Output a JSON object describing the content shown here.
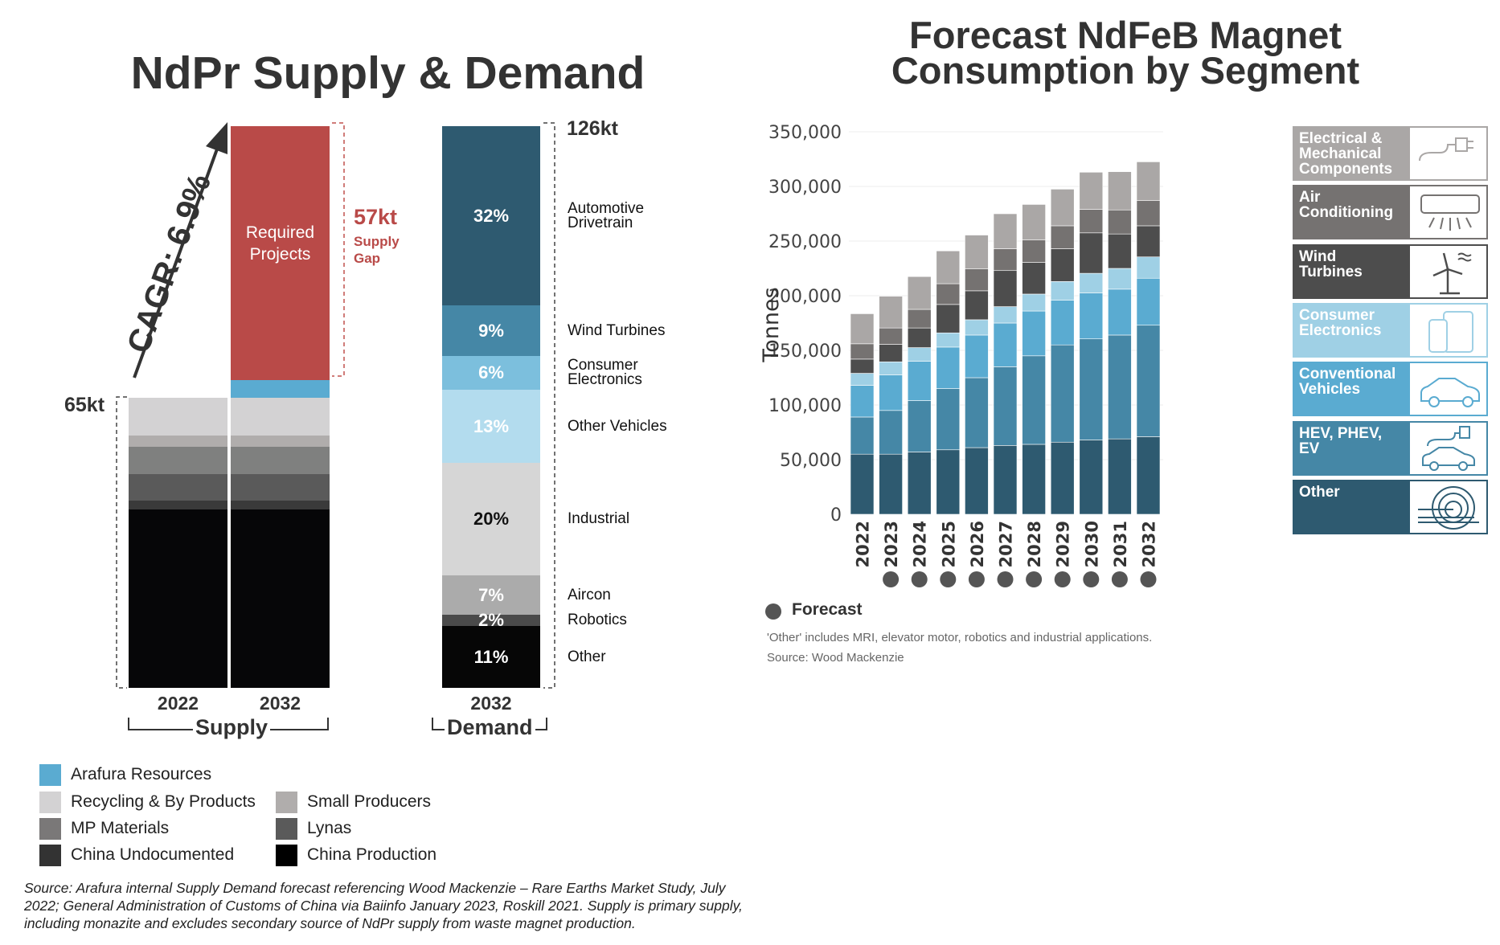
{
  "left_title": "NdPr Supply & Demand",
  "right_title_lines": [
    "Forecast NdFeB Magnet",
    "Consumption by Segment"
  ],
  "chart_data": [
    {
      "type": "bar",
      "stacked": true,
      "title": "NdPr Supply & Demand",
      "units": "kt",
      "supply": {
        "group_label": "Supply",
        "categories": [
          "2022",
          "2032"
        ],
        "total_2022_label": "65kt",
        "series": [
          {
            "name": "China Production",
            "color": "#060608",
            "values": [
              40,
              40
            ]
          },
          {
            "name": "China Undocumented",
            "color": "#3a3a3a",
            "values": [
              2,
              2
            ]
          },
          {
            "name": "Lynas",
            "color": "#5a5a5a",
            "values": [
              6,
              6
            ]
          },
          {
            "name": "MP Materials",
            "color": "#7f807f",
            "values": [
              6,
              6
            ]
          },
          {
            "name": "Small Producers",
            "color": "#b0adac",
            "values": [
              2.5,
              2.5
            ]
          },
          {
            "name": "Recycling & By Products",
            "color": "#d3d2d3",
            "values": [
              8.5,
              8.5
            ]
          },
          {
            "name": "Arafura Resources",
            "color": "#5aabd1",
            "values": [
              0,
              4
            ]
          },
          {
            "name": "Required Projects",
            "color": "#b94a48",
            "values": [
              0,
              57
            ]
          }
        ],
        "required_projects_label": "Required Projects",
        "gap_value_label": "57kt",
        "gap_text": "Supply Gap",
        "cagr_label": "CAGR: 6.9%"
      },
      "demand": {
        "group_label": "Demand",
        "category": "2032",
        "total_label": "126kt",
        "total": 126,
        "segments": [
          {
            "name": "Automotive Drivetrain",
            "pct": 32,
            "label": "32%",
            "color": "#2e5a70",
            "text_color": "#ffffff"
          },
          {
            "name": "Wind Turbines",
            "pct": 9,
            "label": "9%",
            "color": "#4587a6",
            "text_color": "#ffffff"
          },
          {
            "name": "Consumer Electronics",
            "pct": 6,
            "label": "6%",
            "color": "#7cbfdd",
            "text_color": "#ffffff"
          },
          {
            "name": "Other Vehicles",
            "pct": 13,
            "label": "13%",
            "color": "#b3dcee",
            "text_color": "#ffffff"
          },
          {
            "name": "Industrial",
            "pct": 20,
            "label": "20%",
            "color": "#d6d6d6",
            "text_color": "#111111"
          },
          {
            "name": "Aircon",
            "pct": 7,
            "label": "7%",
            "color": "#ababab",
            "text_color": "#ffffff"
          },
          {
            "name": "Robotics",
            "pct": 2,
            "label": "2%",
            "color": "#4a4a4a",
            "text_color": "#ffffff"
          },
          {
            "name": "Other",
            "pct": 11,
            "label": "11%",
            "color": "#060606",
            "text_color": "#ffffff"
          }
        ]
      },
      "legend": [
        {
          "name": "Arafura Resources",
          "color": "#5aabd1"
        },
        {
          "name": "Recycling & By Products",
          "color": "#d3d2d3"
        },
        {
          "name": "Small Producers",
          "color": "#b0adac"
        },
        {
          "name": "MP Materials",
          "color": "#7a7878"
        },
        {
          "name": "Lynas",
          "color": "#5a5a5a"
        },
        {
          "name": "China Undocumented",
          "color": "#333333"
        },
        {
          "name": "China Production",
          "color": "#000000"
        }
      ],
      "source": "Source: Arafura internal Supply Demand forecast referencing Wood Mackenzie – Rare Earths Market Study, July 2022; General Administration of Customs of China via Baiinfo January 2023, Roskill 2021. Supply is primary supply, including monazite and excludes secondary source of NdPr supply from waste magnet production."
    },
    {
      "type": "bar",
      "stacked": true,
      "title": "Forecast NdFeB Magnet Consumption by Segment",
      "ylabel": "Tonnes",
      "ylim": [
        0,
        350000
      ],
      "yticks": [
        "0",
        "50,000",
        "100,000",
        "150,000",
        "200,000",
        "250,000",
        "300,000",
        "350,000"
      ],
      "grid": true,
      "categories": [
        "2022",
        "2023",
        "2024",
        "2025",
        "2026",
        "2027",
        "2028",
        "2029",
        "2030",
        "2031",
        "2032"
      ],
      "forecast": [
        false,
        true,
        true,
        true,
        true,
        true,
        true,
        true,
        true,
        true,
        true
      ],
      "forecast_label": "Forecast",
      "forecast_color": "#555555",
      "series": [
        {
          "name": "Other",
          "color": "#2e5a70",
          "values": [
            55000,
            55000,
            57000,
            59000,
            61000,
            63000,
            64000,
            66000,
            68000,
            69000,
            71000
          ]
        },
        {
          "name": "HEV, PHEV, EV",
          "color": "#4587a6",
          "values": [
            34000,
            40000,
            47000,
            56000,
            64000,
            72000,
            81000,
            89000,
            92500,
            95000,
            102000
          ]
        },
        {
          "name": "Conventional Vehicles",
          "color": "#5aabd1",
          "values": [
            29000,
            32500,
            36000,
            38000,
            39000,
            40000,
            41000,
            41000,
            42000,
            42000,
            43000
          ]
        },
        {
          "name": "Consumer Electronics",
          "color": "#9fd0e5",
          "values": [
            11000,
            12000,
            12500,
            13000,
            14000,
            15000,
            15500,
            17000,
            18000,
            19000,
            19500
          ]
        },
        {
          "name": "Wind Turbines",
          "color": "#4d4d4d",
          "values": [
            13000,
            16000,
            18000,
            26000,
            26500,
            33000,
            29000,
            30000,
            37000,
            31500,
            28500
          ]
        },
        {
          "name": "Air Conditioning",
          "color": "#757271",
          "values": [
            14000,
            15000,
            17000,
            19000,
            20000,
            20000,
            20500,
            21000,
            21500,
            22000,
            23000
          ]
        },
        {
          "name": "Electrical & Mechanical Components",
          "color": "#aaa7a6",
          "values": [
            27500,
            29000,
            30000,
            30000,
            31000,
            32000,
            32500,
            33500,
            34000,
            35000,
            35500
          ]
        }
      ],
      "legend_panels": [
        {
          "lines": [
            "Electrical &",
            "Mechanical",
            "Components"
          ],
          "color": "#aaa7a6",
          "icon": "plug-icon"
        },
        {
          "lines": [
            "Air",
            "Conditioning"
          ],
          "color": "#757271",
          "icon": "air-conditioner-icon"
        },
        {
          "lines": [
            "Wind",
            "Turbines"
          ],
          "color": "#4d4d4d",
          "icon": "wind-turbine-icon"
        },
        {
          "lines": [
            "Consumer",
            "Electronics"
          ],
          "color": "#9fd0e5",
          "icon": "phone-tablet-icon"
        },
        {
          "lines": [
            "Conventional",
            "Vehicles"
          ],
          "color": "#5aabd1",
          "icon": "car-icon"
        },
        {
          "lines": [
            "HEV, PHEV,",
            "EV"
          ],
          "color": "#4587a6",
          "icon": "electric-car-icon"
        },
        {
          "lines": [
            "Other"
          ],
          "color": "#2e5a70",
          "icon": "mri-scanner-icon"
        }
      ],
      "note": "'Other' includes MRI, elevator motor, robotics and industrial applications.",
      "source": "Source: Wood Mackenzie"
    }
  ]
}
